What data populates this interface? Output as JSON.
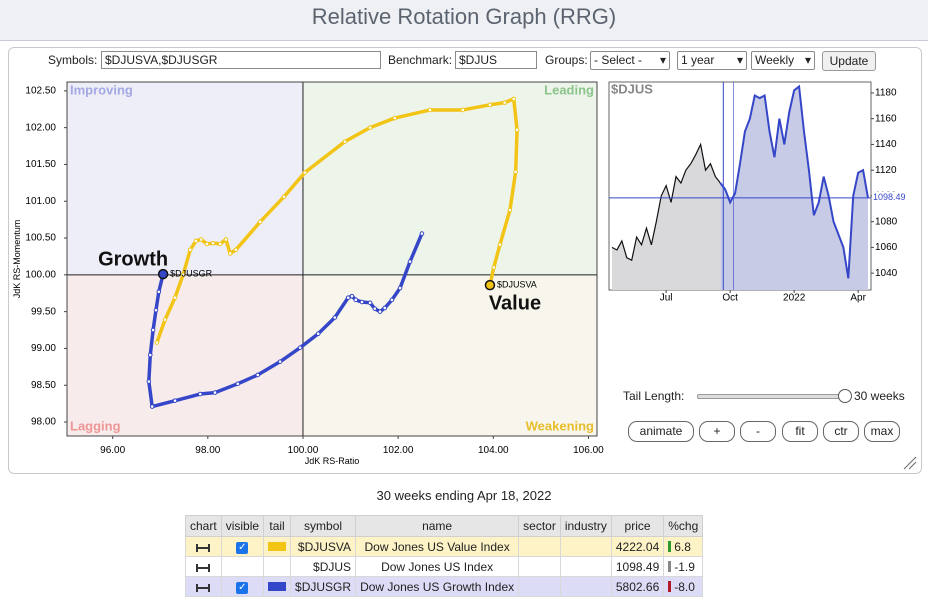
{
  "header": {
    "title": "Relative Rotation Graph (RRG)"
  },
  "controls": {
    "symbols_label": "Symbols:",
    "symbols": "$DJUSVA,$DJUSGR",
    "benchmark_label": "Benchmark:",
    "benchmark": "$DJUS",
    "groups_label": "Groups:",
    "groups": "- Select -",
    "period": "1 year",
    "frequency": "Weekly",
    "update": "Update",
    "tail_label": "Tail Length:",
    "tail_value": "30 weeks",
    "buttons": [
      "animate",
      "+",
      "-",
      "fit",
      "ctr",
      "max"
    ]
  },
  "chart_data": [
    {
      "type": "rrg",
      "xlabel": "JdK RS-Ratio",
      "ylabel": "JdK RS-Momentum",
      "quadrants": [
        "Improving",
        "Leading",
        "Lagging",
        "Weakening"
      ],
      "center": [
        100,
        100
      ],
      "xlim": [
        95.04,
        106.18
      ],
      "ylim": [
        97.81,
        102.62
      ],
      "xticks": [
        {
          "value": 96,
          "label": "96.00"
        },
        {
          "value": 98,
          "label": "98.00"
        },
        {
          "value": 100,
          "label": "100.00"
        },
        {
          "value": 102,
          "label": "102.00"
        },
        {
          "value": 104,
          "label": "104.00"
        },
        {
          "value": 106,
          "label": "106.00"
        }
      ],
      "yticks": [
        {
          "value": 98,
          "label": "98.00"
        },
        {
          "value": 98.5,
          "label": "98.50"
        },
        {
          "value": 99,
          "label": "99.00"
        },
        {
          "value": 99.5,
          "label": "99.50"
        },
        {
          "value": 100,
          "label": "100.00"
        },
        {
          "value": 100.5,
          "label": "100.50"
        },
        {
          "value": 101,
          "label": "101.00"
        },
        {
          "value": 101.5,
          "label": "101.50"
        },
        {
          "value": 102,
          "label": "102.00"
        },
        {
          "value": 102.5,
          "label": "102.50"
        }
      ],
      "series": [
        {
          "name": "$DJUSVA",
          "label": "Value",
          "color": "#f2c416",
          "x": [
            96.93,
            97.1,
            97.31,
            97.48,
            97.63,
            97.75,
            97.86,
            97.98,
            98.11,
            98.26,
            98.38,
            98.47,
            98.59,
            99.1,
            99.6,
            100.04,
            100.88,
            101.41,
            101.93,
            102.67,
            103.36,
            103.93,
            104.24,
            104.43,
            104.5,
            104.47,
            104.35,
            104.14,
            104.01,
            103.93
          ],
          "values": [
            99.08,
            99.39,
            99.69,
            100.0,
            100.34,
            100.46,
            100.48,
            100.42,
            100.43,
            100.42,
            100.48,
            100.29,
            100.34,
            100.72,
            101.06,
            101.39,
            101.81,
            102.0,
            102.13,
            102.24,
            102.24,
            102.31,
            102.34,
            102.39,
            101.97,
            101.4,
            100.88,
            100.41,
            100.1,
            99.86
          ]
        },
        {
          "name": "$DJUSGR",
          "label": "Growth",
          "color": "#3547c8",
          "x": [
            102.5,
            102.25,
            102.04,
            101.87,
            101.72,
            101.62,
            101.51,
            101.41,
            101.24,
            101.11,
            101.03,
            100.95,
            100.67,
            100.32,
            99.94,
            99.52,
            99.05,
            98.63,
            98.15,
            97.84,
            97.31,
            96.83,
            96.76,
            96.79,
            96.85,
            96.91,
            96.97,
            97.06
          ],
          "values": [
            100.56,
            100.18,
            99.82,
            99.66,
            99.55,
            99.5,
            99.54,
            99.62,
            99.63,
            99.66,
            99.71,
            99.69,
            99.42,
            99.2,
            99.01,
            98.82,
            98.64,
            98.52,
            98.4,
            98.38,
            98.29,
            98.21,
            98.55,
            98.91,
            99.25,
            99.52,
            99.77,
            100.01
          ]
        }
      ]
    },
    {
      "type": "line",
      "title": "$DJUS",
      "color": "#3547c8",
      "categories": [
        null,
        null,
        null,
        null,
        null,
        null,
        null,
        null,
        null,
        null,
        null,
        "Jul",
        null,
        null,
        null,
        null,
        null,
        null,
        null,
        null,
        null,
        null,
        null,
        null,
        "Oct",
        null,
        null,
        null,
        null,
        null,
        null,
        null,
        null,
        null,
        null,
        null,
        null,
        "2022",
        null,
        null,
        null,
        null,
        null,
        null,
        null,
        null,
        null,
        null,
        null,
        null,
        "Apr",
        null,
        null
      ],
      "values": [
        1060,
        1058,
        1065,
        1052,
        1050,
        1068,
        1062,
        1075,
        1062,
        1080,
        1100,
        1108,
        1095,
        1115,
        1110,
        1120,
        1125,
        1132,
        1140,
        1120,
        1125,
        1115,
        1110,
        1105,
        1095,
        1102,
        1125,
        1150,
        1160,
        1178,
        1176,
        1178,
        1150,
        1130,
        1160,
        1140,
        1165,
        1182,
        1185,
        1150,
        1120,
        1085,
        1095,
        1115,
        1100,
        1080,
        1070,
        1060,
        1036,
        1100,
        1118,
        1120,
        1098.49
      ],
      "ylim": [
        1026.9,
        1188.5
      ],
      "yticks": [
        1040,
        1060,
        1080,
        1100,
        1120,
        1140,
        1160,
        1180
      ]
    }
  ],
  "caption": "30 weeks ending Apr 18, 2022",
  "table": {
    "columns": [
      "chart",
      "visible",
      "tail",
      "symbol",
      "name",
      "sector",
      "industry",
      "price",
      "%chg"
    ],
    "rows": [
      {
        "symbol": "$DJUSVA",
        "name": "Dow Jones US Value Index",
        "price": "4222.04",
        "chg": "6.8",
        "chg_color": "#2e9a2e",
        "visible": true,
        "color": "#f2c416",
        "background": "#fdf3c6"
      },
      {
        "symbol": "$DJUS",
        "name": "Dow Jones US Index",
        "price": "1098.49",
        "chg": "-1.9",
        "chg_color": "#888888",
        "background": "#ffffff"
      },
      {
        "symbol": "$DJUSGR",
        "name": "Dow Jones US Growth Index",
        "price": "5802.66",
        "chg": "-8.0",
        "chg_color": "#b0182a",
        "visible": true,
        "color": "#3547c8",
        "background": "#dcdcf6"
      }
    ]
  }
}
